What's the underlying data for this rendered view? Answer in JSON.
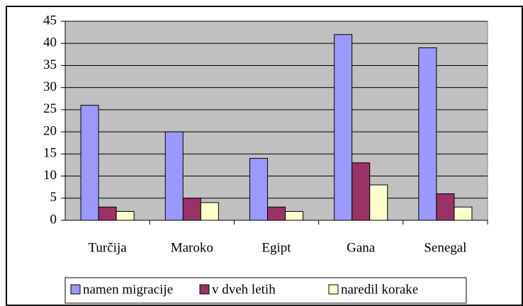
{
  "chart_data": {
    "type": "bar",
    "categories": [
      "Turčija",
      "Maroko",
      "Egipt",
      "Gana",
      "Senegal"
    ],
    "series": [
      {
        "name": "namen migracije",
        "color": "#9999ff",
        "values": [
          26,
          20,
          14,
          42,
          39
        ]
      },
      {
        "name": "v dveh letih",
        "color": "#993366",
        "values": [
          3,
          5,
          3,
          13,
          6
        ]
      },
      {
        "name": "naredil korake",
        "color": "#ffffcc",
        "values": [
          2,
          4,
          2,
          8,
          3
        ]
      }
    ],
    "ylim": [
      0,
      45
    ],
    "yticks": [
      0,
      5,
      10,
      15,
      20,
      25,
      30,
      35,
      40,
      45
    ],
    "grid": true,
    "legend": "bottom"
  }
}
